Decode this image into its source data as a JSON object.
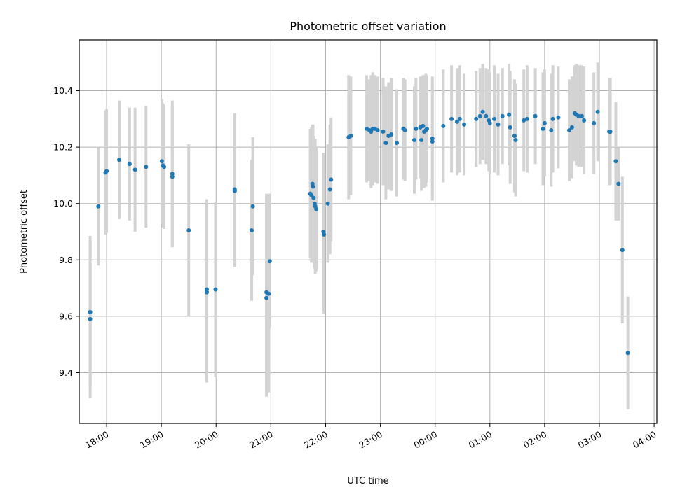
{
  "chart_data": {
    "type": "scatter",
    "title": "Photometric offset variation",
    "xlabel": "UTC time",
    "ylabel": "Photometric offset",
    "grid": true,
    "xlim": [
      17.5,
      28.05
    ],
    "ylim": [
      9.22,
      10.58
    ],
    "x_ticks": [
      {
        "value": 18,
        "label": "18:00"
      },
      {
        "value": 19,
        "label": "19:00"
      },
      {
        "value": 20,
        "label": "20:00"
      },
      {
        "value": 21,
        "label": "21:00"
      },
      {
        "value": 22,
        "label": "22:00"
      },
      {
        "value": 23,
        "label": "23:00"
      },
      {
        "value": 24,
        "label": "00:00"
      },
      {
        "value": 25,
        "label": "01:00"
      },
      {
        "value": 26,
        "label": "02:00"
      },
      {
        "value": 27,
        "label": "03:00"
      },
      {
        "value": 28,
        "label": "04:00"
      }
    ],
    "y_ticks": [
      {
        "value": 9.4,
        "label": "9.4"
      },
      {
        "value": 9.6,
        "label": "9.6"
      },
      {
        "value": 9.8,
        "label": "9.8"
      },
      {
        "value": 10.0,
        "label": "10.0"
      },
      {
        "value": 10.2,
        "label": "10.2"
      },
      {
        "value": 10.4,
        "label": "10.4"
      }
    ],
    "marker_color": "#1f77b4",
    "errorbar_color": "#d3d3d3",
    "points": [
      {
        "x": 17.7,
        "y": 9.615,
        "err": 0.27
      },
      {
        "x": 17.7,
        "y": 9.59,
        "err": 0.28
      },
      {
        "x": 17.85,
        "y": 9.99,
        "err": 0.21
      },
      {
        "x": 17.98,
        "y": 10.11,
        "err": 0.22
      },
      {
        "x": 18.0,
        "y": 10.115,
        "err": 0.22
      },
      {
        "x": 18.23,
        "y": 10.155,
        "err": 0.21
      },
      {
        "x": 18.42,
        "y": 10.14,
        "err": 0.2
      },
      {
        "x": 18.52,
        "y": 10.12,
        "err": 0.22
      },
      {
        "x": 18.72,
        "y": 10.13,
        "err": 0.215
      },
      {
        "x": 19.01,
        "y": 10.15,
        "err": 0.22
      },
      {
        "x": 19.03,
        "y": 10.135,
        "err": 0.22
      },
      {
        "x": 19.05,
        "y": 10.13,
        "err": 0.22
      },
      {
        "x": 19.2,
        "y": 10.105,
        "err": 0.26
      },
      {
        "x": 19.2,
        "y": 10.095,
        "err": 0.25
      },
      {
        "x": 19.5,
        "y": 9.905,
        "err": 0.305
      },
      {
        "x": 19.83,
        "y": 9.695,
        "err": 0.32
      },
      {
        "x": 19.83,
        "y": 9.685,
        "err": 0.32
      },
      {
        "x": 19.99,
        "y": 9.695,
        "err": 0.31
      },
      {
        "x": 20.34,
        "y": 10.05,
        "err": 0.27
      },
      {
        "x": 20.34,
        "y": 10.045,
        "err": 0.27
      },
      {
        "x": 20.65,
        "y": 9.905,
        "err": 0.25
      },
      {
        "x": 20.67,
        "y": 9.99,
        "err": 0.245
      },
      {
        "x": 20.92,
        "y": 9.685,
        "err": 0.35
      },
      {
        "x": 20.92,
        "y": 9.665,
        "err": 0.35
      },
      {
        "x": 20.96,
        "y": 9.68,
        "err": 0.35
      },
      {
        "x": 20.98,
        "y": 9.795,
        "err": 0.24
      },
      {
        "x": 21.72,
        "y": 10.035,
        "err": 0.23
      },
      {
        "x": 21.74,
        "y": 10.03,
        "err": 0.24
      },
      {
        "x": 21.76,
        "y": 10.07,
        "err": 0.21
      },
      {
        "x": 21.77,
        "y": 10.06,
        "err": 0.22
      },
      {
        "x": 21.78,
        "y": 10.02,
        "err": 0.22
      },
      {
        "x": 21.8,
        "y": 10.0,
        "err": 0.23
      },
      {
        "x": 21.81,
        "y": 9.99,
        "err": 0.24
      },
      {
        "x": 21.83,
        "y": 9.98,
        "err": 0.22
      },
      {
        "x": 21.96,
        "y": 9.9,
        "err": 0.28
      },
      {
        "x": 21.97,
        "y": 9.89,
        "err": 0.28
      },
      {
        "x": 22.04,
        "y": 10.0,
        "err": 0.21
      },
      {
        "x": 22.08,
        "y": 10.05,
        "err": 0.23
      },
      {
        "x": 22.1,
        "y": 10.085,
        "err": 0.22
      },
      {
        "x": 22.42,
        "y": 10.235,
        "err": 0.22
      },
      {
        "x": 22.46,
        "y": 10.24,
        "err": 0.21
      },
      {
        "x": 22.75,
        "y": 10.265,
        "err": 0.19
      },
      {
        "x": 22.8,
        "y": 10.26,
        "err": 0.18
      },
      {
        "x": 22.83,
        "y": 10.255,
        "err": 0.2
      },
      {
        "x": 22.86,
        "y": 10.265,
        "err": 0.2
      },
      {
        "x": 22.9,
        "y": 10.265,
        "err": 0.19
      },
      {
        "x": 22.95,
        "y": 10.26,
        "err": 0.19
      },
      {
        "x": 23.05,
        "y": 10.255,
        "err": 0.19
      },
      {
        "x": 23.1,
        "y": 10.215,
        "err": 0.2
      },
      {
        "x": 23.15,
        "y": 10.24,
        "err": 0.19
      },
      {
        "x": 23.2,
        "y": 10.245,
        "err": 0.2
      },
      {
        "x": 23.3,
        "y": 10.215,
        "err": 0.19
      },
      {
        "x": 23.42,
        "y": 10.265,
        "err": 0.18
      },
      {
        "x": 23.45,
        "y": 10.26,
        "err": 0.18
      },
      {
        "x": 23.62,
        "y": 10.225,
        "err": 0.19
      },
      {
        "x": 23.65,
        "y": 10.265,
        "err": 0.18
      },
      {
        "x": 23.73,
        "y": 10.27,
        "err": 0.18
      },
      {
        "x": 23.75,
        "y": 10.225,
        "err": 0.18
      },
      {
        "x": 23.78,
        "y": 10.275,
        "err": 0.18
      },
      {
        "x": 23.8,
        "y": 10.255,
        "err": 0.2
      },
      {
        "x": 23.83,
        "y": 10.26,
        "err": 0.2
      },
      {
        "x": 23.85,
        "y": 10.265,
        "err": 0.19
      },
      {
        "x": 23.95,
        "y": 10.23,
        "err": 0.22
      },
      {
        "x": 23.95,
        "y": 10.22,
        "err": 0.2
      },
      {
        "x": 24.15,
        "y": 10.275,
        "err": 0.2
      },
      {
        "x": 24.3,
        "y": 10.3,
        "err": 0.19
      },
      {
        "x": 24.4,
        "y": 10.29,
        "err": 0.19
      },
      {
        "x": 24.45,
        "y": 10.3,
        "err": 0.19
      },
      {
        "x": 24.53,
        "y": 10.28,
        "err": 0.18
      },
      {
        "x": 24.75,
        "y": 10.3,
        "err": 0.17
      },
      {
        "x": 24.82,
        "y": 10.31,
        "err": 0.17
      },
      {
        "x": 24.87,
        "y": 10.325,
        "err": 0.17
      },
      {
        "x": 24.93,
        "y": 10.31,
        "err": 0.17
      },
      {
        "x": 24.98,
        "y": 10.295,
        "err": 0.18
      },
      {
        "x": 25.0,
        "y": 10.285,
        "err": 0.18
      },
      {
        "x": 25.08,
        "y": 10.3,
        "err": 0.19
      },
      {
        "x": 25.15,
        "y": 10.28,
        "err": 0.18
      },
      {
        "x": 25.23,
        "y": 10.31,
        "err": 0.17
      },
      {
        "x": 25.35,
        "y": 10.315,
        "err": 0.18
      },
      {
        "x": 25.37,
        "y": 10.27,
        "err": 0.2
      },
      {
        "x": 25.45,
        "y": 10.24,
        "err": 0.2
      },
      {
        "x": 25.47,
        "y": 10.225,
        "err": 0.2
      },
      {
        "x": 25.62,
        "y": 10.295,
        "err": 0.18
      },
      {
        "x": 25.68,
        "y": 10.3,
        "err": 0.19
      },
      {
        "x": 25.83,
        "y": 10.31,
        "err": 0.17
      },
      {
        "x": 25.97,
        "y": 10.265,
        "err": 0.2
      },
      {
        "x": 26.0,
        "y": 10.285,
        "err": 0.19
      },
      {
        "x": 26.12,
        "y": 10.26,
        "err": 0.2
      },
      {
        "x": 26.15,
        "y": 10.3,
        "err": 0.19
      },
      {
        "x": 26.25,
        "y": 10.305,
        "err": 0.18
      },
      {
        "x": 26.45,
        "y": 10.26,
        "err": 0.18
      },
      {
        "x": 26.5,
        "y": 10.27,
        "err": 0.18
      },
      {
        "x": 26.55,
        "y": 10.32,
        "err": 0.17
      },
      {
        "x": 26.58,
        "y": 10.315,
        "err": 0.18
      },
      {
        "x": 26.62,
        "y": 10.31,
        "err": 0.18
      },
      {
        "x": 26.68,
        "y": 10.31,
        "err": 0.18
      },
      {
        "x": 26.72,
        "y": 10.295,
        "err": 0.19
      },
      {
        "x": 26.9,
        "y": 10.285,
        "err": 0.18
      },
      {
        "x": 26.97,
        "y": 10.325,
        "err": 0.175
      },
      {
        "x": 27.18,
        "y": 10.255,
        "err": 0.19
      },
      {
        "x": 27.2,
        "y": 10.255,
        "err": 0.19
      },
      {
        "x": 27.3,
        "y": 10.15,
        "err": 0.21
      },
      {
        "x": 27.35,
        "y": 10.07,
        "err": 0.13
      },
      {
        "x": 27.42,
        "y": 9.835,
        "err": 0.26
      },
      {
        "x": 27.52,
        "y": 9.47,
        "err": 0.2
      }
    ]
  }
}
